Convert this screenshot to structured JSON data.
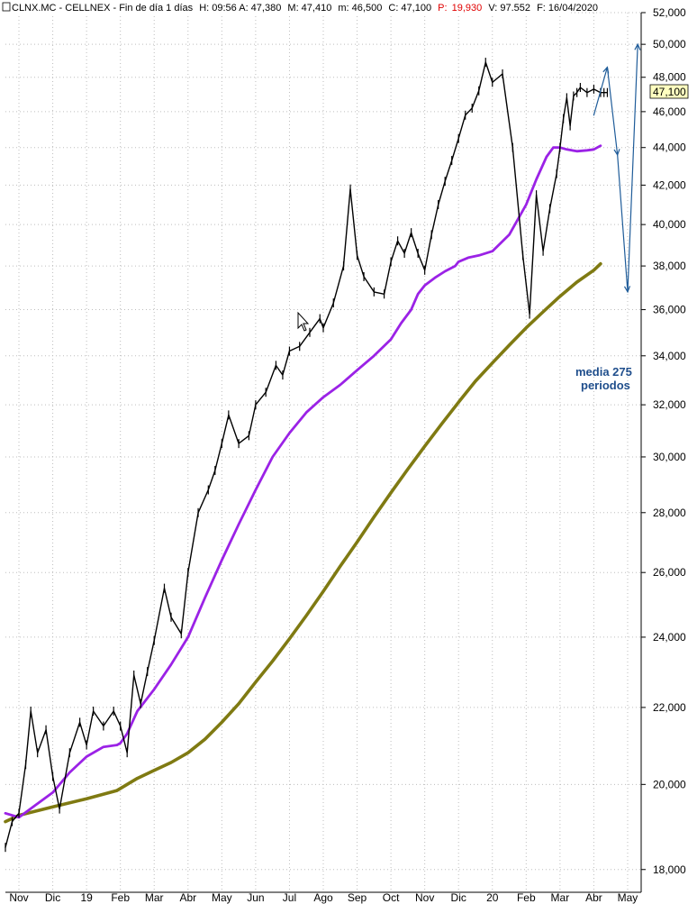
{
  "header": {
    "symbol": "CLNX.MC - CELLNEX - Fin de día 1 días",
    "high": "H: 09:56  A: 47,380",
    "max": "M: 47,410",
    "min": "m: 46,500",
    "close": "C: 47,100",
    "pct_label": "P:",
    "pct_value": "19,930",
    "volume": "V: 97.552",
    "date": "F: 16/04/2020",
    "pct_color": "#e00000"
  },
  "last_price_label": "47,100",
  "annotation": {
    "line1": "media 275",
    "line2": "periodos"
  },
  "colors": {
    "price": "#000000",
    "ma_fast": "#9b22e6",
    "ma_slow": "#7f7a12",
    "projection": "#1f5c99",
    "grid": "#bdbdbd"
  },
  "chart_data": {
    "type": "line",
    "scale": "log",
    "title": "",
    "xlabel": "",
    "ylabel": "",
    "ylim": [
      17500,
      52000
    ],
    "y_ticks": [
      "18,000",
      "20,000",
      "22,000",
      "24,000",
      "26,000",
      "28,000",
      "30,000",
      "32,000",
      "34,000",
      "36,000",
      "38,000",
      "40,000",
      "42,000",
      "44,000",
      "46,000",
      "48,000",
      "50,000",
      "52,000"
    ],
    "y_tick_values": [
      18000,
      20000,
      22000,
      24000,
      26000,
      28000,
      30000,
      32000,
      34000,
      36000,
      38000,
      40000,
      42000,
      44000,
      46000,
      48000,
      50000,
      52000
    ],
    "x_ticks": [
      "Nov",
      "Dic",
      "19",
      "Feb",
      "Mar",
      "Abr",
      "May",
      "Jun",
      "Jul",
      "Ago",
      "Sep",
      "Oct",
      "Nov",
      "Dic",
      "20",
      "Feb",
      "Mar",
      "Abr",
      "May"
    ],
    "x_tick_index": [
      0,
      1,
      2,
      3,
      4,
      5,
      6,
      7,
      8,
      9,
      10,
      11,
      12,
      13,
      14,
      15,
      16,
      17,
      18
    ],
    "x_range": [
      -0.4,
      18.4
    ],
    "grid": true,
    "series": [
      {
        "role": "price",
        "x": [
          -0.4,
          -0.2,
          0.0,
          0.2,
          0.35,
          0.55,
          0.8,
          1.0,
          1.2,
          1.5,
          1.8,
          2.0,
          2.2,
          2.5,
          2.8,
          3.0,
          3.2,
          3.4,
          3.6,
          3.8,
          4.0,
          4.3,
          4.5,
          4.8,
          5.0,
          5.3,
          5.6,
          5.8,
          6.0,
          6.2,
          6.5,
          6.8,
          7.0,
          7.3,
          7.6,
          7.8,
          8.0,
          8.3,
          8.6,
          8.9,
          9.0,
          9.3,
          9.6,
          9.8,
          10.0,
          10.2,
          10.5,
          10.8,
          11.0,
          11.2,
          11.4,
          11.6,
          11.8,
          12.0,
          12.2,
          12.4,
          12.6,
          12.8,
          13.0,
          13.2,
          13.4,
          13.6,
          13.8,
          14.0,
          14.3,
          14.6,
          14.9,
          15.1,
          15.3,
          15.5,
          15.7,
          15.9,
          16.0,
          16.1,
          16.2,
          16.3,
          16.4,
          16.5,
          16.6,
          16.8,
          17.0,
          17.2,
          17.3,
          17.4
        ],
        "y": [
          18500,
          19100,
          19300,
          20500,
          21900,
          20800,
          21400,
          20200,
          19400,
          20800,
          21600,
          21000,
          21900,
          21500,
          21900,
          21500,
          20800,
          22900,
          22100,
          23000,
          23900,
          25500,
          24600,
          24100,
          26000,
          28000,
          28800,
          29500,
          30500,
          31600,
          30500,
          30800,
          32000,
          32500,
          33600,
          33200,
          34200,
          34400,
          35000,
          35600,
          35200,
          36300,
          38000,
          41800,
          38500,
          37500,
          36800,
          36700,
          38200,
          39200,
          38600,
          39600,
          38600,
          37800,
          39500,
          41000,
          42200,
          43300,
          44500,
          45800,
          46200,
          47200,
          48900,
          47700,
          48200,
          44000,
          38500,
          35800,
          41500,
          38700,
          40800,
          42600,
          44000,
          45600,
          46800,
          45200,
          46900,
          47100,
          47400,
          47100,
          47300,
          47100,
          47100,
          47100
        ]
      },
      {
        "role": "ma_fast",
        "x": [
          -0.4,
          0.0,
          0.5,
          1.0,
          1.5,
          2.0,
          2.5,
          2.9,
          3.0,
          3.2,
          3.5,
          4.0,
          4.5,
          5.0,
          5.5,
          6.0,
          6.5,
          7.0,
          7.5,
          8.0,
          8.5,
          9.0,
          9.5,
          10.0,
          10.5,
          11.0,
          11.3,
          11.6,
          11.8,
          12.0,
          12.3,
          12.6,
          12.9,
          13.0,
          13.3,
          13.6,
          14.0,
          14.5,
          15.0,
          15.3,
          15.6,
          15.8,
          16.0,
          16.2,
          16.5,
          16.8,
          17.0,
          17.2
        ],
        "y": [
          19300,
          19200,
          19500,
          19800,
          20300,
          20700,
          20950,
          21000,
          21050,
          21300,
          21900,
          22500,
          23200,
          24000,
          25200,
          26400,
          27600,
          28800,
          30000,
          30900,
          31700,
          32300,
          32800,
          33400,
          34000,
          34700,
          35400,
          36000,
          36700,
          37100,
          37450,
          37750,
          38000,
          38200,
          38400,
          38500,
          38700,
          39500,
          41000,
          42300,
          43500,
          44000,
          44000,
          43900,
          43800,
          43850,
          43900,
          44100
        ]
      },
      {
        "role": "ma_slow",
        "x": [
          -0.4,
          0.0,
          1.0,
          2.0,
          2.9,
          3.0,
          3.5,
          4.0,
          4.5,
          5.0,
          5.5,
          6.0,
          6.5,
          7.0,
          7.5,
          8.0,
          8.5,
          9.0,
          9.5,
          10.0,
          10.5,
          11.0,
          11.5,
          12.0,
          12.5,
          13.0,
          13.5,
          14.0,
          14.5,
          15.0,
          15.5,
          16.0,
          16.5,
          17.0,
          17.2
        ],
        "y": [
          19100,
          19250,
          19450,
          19650,
          19850,
          19900,
          20150,
          20350,
          20550,
          20800,
          21150,
          21600,
          22100,
          22700,
          23300,
          23950,
          24650,
          25400,
          26200,
          27000,
          27850,
          28700,
          29550,
          30400,
          31250,
          32100,
          32950,
          33700,
          34450,
          35200,
          35900,
          36600,
          37250,
          37800,
          38100
        ]
      },
      {
        "role": "projection",
        "x": [
          17.0,
          17.4,
          17.7,
          18.0,
          18.3
        ],
        "y": [
          45800,
          48600,
          43600,
          36800,
          50000
        ]
      }
    ]
  }
}
